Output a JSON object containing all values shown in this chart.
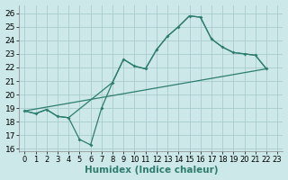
{
  "xlabel": "Humidex (Indice chaleur)",
  "xlim": [
    -0.5,
    23.5
  ],
  "ylim": [
    15.8,
    26.6
  ],
  "yticks": [
    16,
    17,
    18,
    19,
    20,
    21,
    22,
    23,
    24,
    25,
    26
  ],
  "xticks": [
    0,
    1,
    2,
    3,
    4,
    5,
    6,
    7,
    8,
    9,
    10,
    11,
    12,
    13,
    14,
    15,
    16,
    17,
    18,
    19,
    20,
    21,
    22,
    23
  ],
  "bg_color": "#cce8e8",
  "grid_color": "#aacccc",
  "line_color": "#2e7d6e",
  "line1_x": [
    0,
    1,
    2,
    3,
    4,
    5,
    6,
    7,
    8,
    9,
    10,
    11,
    12,
    13,
    14,
    15,
    16,
    17,
    18,
    19,
    20,
    21,
    22
  ],
  "line1_y": [
    18.8,
    18.6,
    18.9,
    18.4,
    18.3,
    16.7,
    16.3,
    19.0,
    20.9,
    22.6,
    22.1,
    21.9,
    23.3,
    24.3,
    25.0,
    25.8,
    25.7,
    24.1,
    23.5,
    23.1,
    23.0,
    22.9,
    21.9
  ],
  "line2_x": [
    0,
    1,
    2,
    3,
    4,
    8,
    9,
    10,
    11,
    12,
    13,
    14,
    15,
    16,
    17,
    18,
    19,
    20,
    21,
    22
  ],
  "line2_y": [
    18.8,
    18.6,
    18.9,
    18.4,
    18.3,
    20.9,
    22.6,
    22.1,
    21.9,
    23.3,
    24.3,
    25.0,
    25.8,
    25.7,
    24.1,
    23.5,
    23.1,
    23.0,
    22.9,
    21.9
  ],
  "line3_x": [
    0,
    22
  ],
  "line3_y": [
    18.8,
    21.9
  ],
  "tick_fontsize": 6.5,
  "label_fontsize": 7.5
}
